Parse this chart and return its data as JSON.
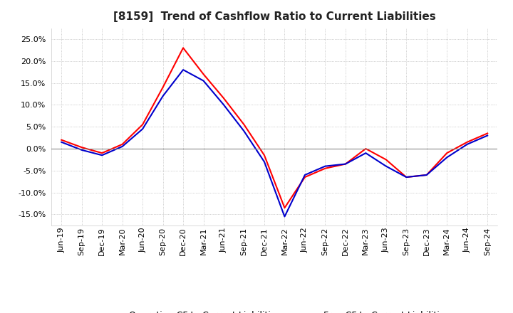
{
  "title": "[8159]  Trend of Cashflow Ratio to Current Liabilities",
  "x_labels": [
    "Jun-19",
    "Sep-19",
    "Dec-19",
    "Mar-20",
    "Jun-20",
    "Sep-20",
    "Dec-20",
    "Mar-21",
    "Jun-21",
    "Sep-21",
    "Dec-21",
    "Mar-22",
    "Jun-22",
    "Sep-22",
    "Dec-22",
    "Mar-23",
    "Jun-23",
    "Sep-23",
    "Dec-23",
    "Mar-24",
    "Jun-24",
    "Sep-24"
  ],
  "operating_cf": [
    2.0,
    0.3,
    -1.0,
    1.0,
    5.5,
    14.0,
    23.0,
    17.0,
    11.5,
    5.5,
    -1.5,
    -13.5,
    -6.5,
    -4.5,
    -3.5,
    0.0,
    -2.5,
    -6.5,
    -6.0,
    -1.0,
    1.5,
    3.5
  ],
  "free_cf": [
    1.5,
    -0.3,
    -1.5,
    0.5,
    4.5,
    12.0,
    18.0,
    15.5,
    10.0,
    4.0,
    -3.0,
    -15.5,
    -6.0,
    -4.0,
    -3.5,
    -1.0,
    -4.0,
    -6.5,
    -6.0,
    -2.0,
    1.0,
    3.0
  ],
  "operating_color": "#ff0000",
  "free_color": "#0000cc",
  "ylim": [
    -17.5,
    27.5
  ],
  "yticks": [
    25.0,
    20.0,
    15.0,
    10.0,
    5.0,
    0.0,
    -5.0,
    -10.0,
    -15.0
  ],
  "background_color": "#ffffff",
  "plot_bg_color": "#ffffff",
  "grid_color": "#aaaaaa",
  "zero_line_color": "#888888",
  "legend_operating": "Operating CF to Current Liabilities",
  "legend_free": "Free CF to Current Liabilities",
  "title_fontsize": 11,
  "tick_fontsize": 8,
  "legend_fontsize": 9
}
